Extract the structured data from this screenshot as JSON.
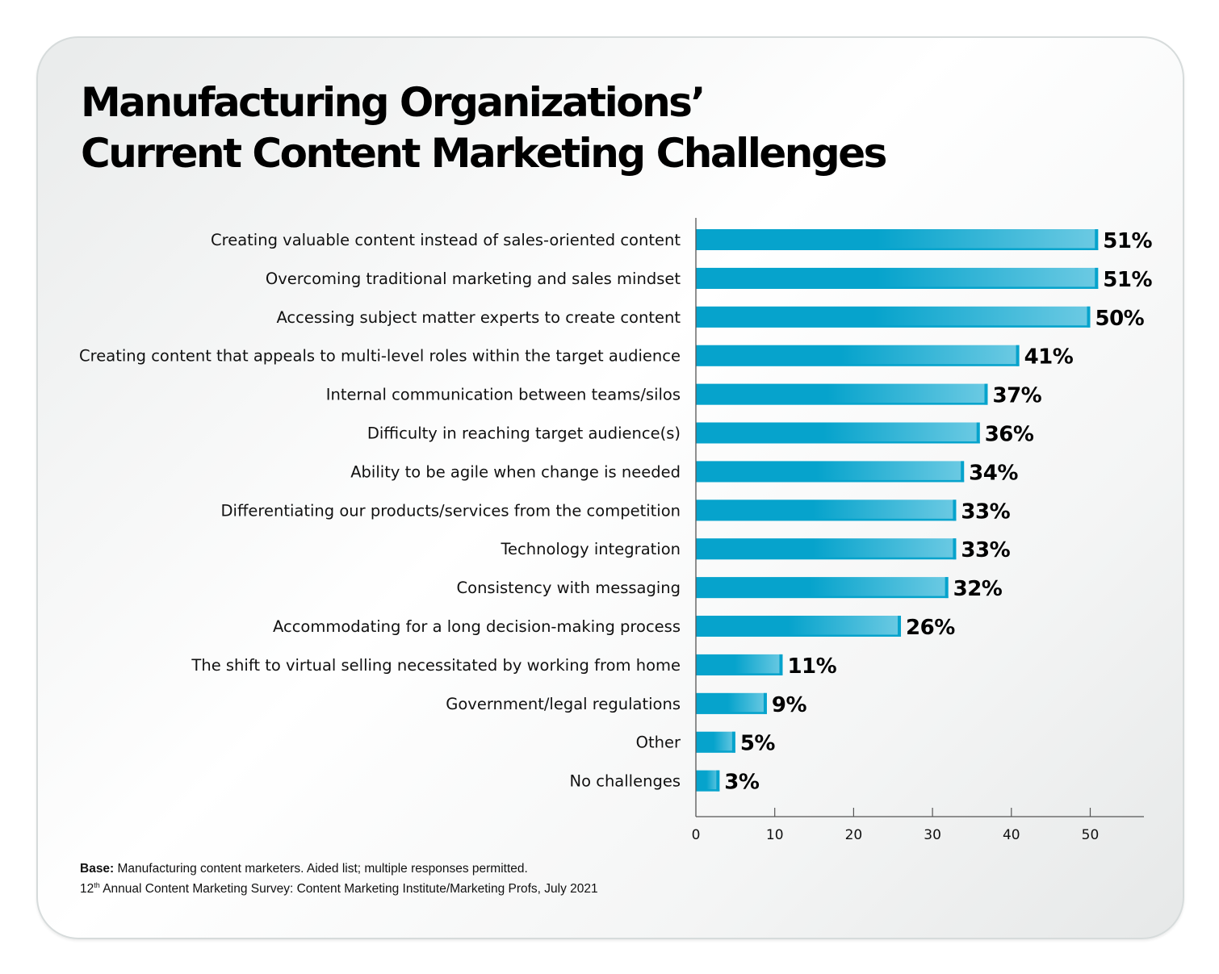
{
  "chart_data": {
    "type": "bar",
    "orientation": "horizontal",
    "title": "Manufacturing Organizations’ Current Content Marketing Challenges",
    "title_lines": [
      "Manufacturing Organizations’",
      "Current Content Marketing Challenges"
    ],
    "categories": [
      "Creating valuable content instead of sales-oriented content",
      "Overcoming traditional marketing and sales mindset",
      "Accessing subject matter experts to create content",
      "Creating content that appeals to multi-level roles within the target audience",
      "Internal communication between teams/silos",
      "Difficulty in reaching target audience(s)",
      "Ability to be agile when change is needed",
      "Differentiating our products/services from the competition",
      "Technology integration",
      "Consistency with messaging",
      "Accommodating for a long decision-making process",
      "The shift to virtual selling necessitated by working from home",
      "Government/legal regulations",
      "Other",
      "No challenges"
    ],
    "values": [
      51,
      51,
      50,
      41,
      37,
      36,
      34,
      33,
      33,
      32,
      26,
      11,
      9,
      5,
      3
    ],
    "data_labels": [
      "51%",
      "51%",
      "50%",
      "41%",
      "37%",
      "36%",
      "34%",
      "33%",
      "33%",
      "32%",
      "26%",
      "11%",
      "9%",
      "5%",
      "3%"
    ],
    "xlim": [
      0,
      57
    ],
    "xticks": [
      0,
      10,
      20,
      30,
      40,
      50
    ],
    "xlabel": "",
    "ylabel": "",
    "grid": false,
    "bar_color_start": "#06a3cc",
    "bar_color_end": "#6ccae3"
  },
  "footnote": {
    "base_label": "Base:",
    "base_text": " Manufacturing content marketers. Aided list; multiple responses permitted.",
    "source_num": "12",
    "source_sup": "th",
    "source_text": " Annual Content Marketing Survey: Content Marketing Institute/Marketing Profs, July 2021"
  }
}
